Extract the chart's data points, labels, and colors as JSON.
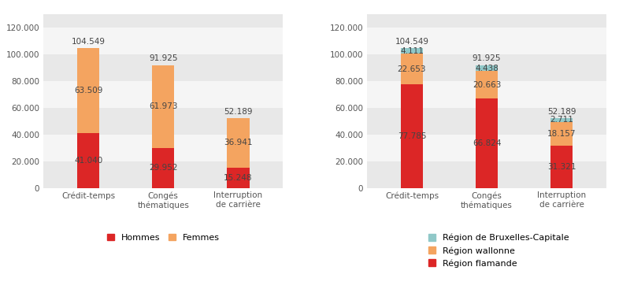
{
  "categories": [
    "Crédit-temps",
    "Congés\nthématiques",
    "Interruption\nde carrière"
  ],
  "chart1": {
    "hommes": [
      41040,
      29952,
      15248
    ],
    "femmes": [
      63509,
      61973,
      36941
    ],
    "totals": [
      104549,
      91925,
      52189
    ],
    "color_hommes": "#dc2626",
    "color_femmes": "#f4a460",
    "legend": [
      "Hommes",
      "Femmes"
    ]
  },
  "chart2": {
    "flamande": [
      77785,
      66824,
      31321
    ],
    "wallonne": [
      22653,
      20663,
      18157
    ],
    "bruxelles": [
      4111,
      4438,
      2711
    ],
    "totals": [
      104549,
      91925,
      52189
    ],
    "color_flamande": "#dc2626",
    "color_wallonne": "#f4a460",
    "color_bruxelles": "#90c8c8",
    "legend": [
      "Région de Bruxelles-Capitale",
      "Région wallonne",
      "Région flamande"
    ]
  },
  "ylim": [
    0,
    130000
  ],
  "yticks": [
    0,
    20000,
    40000,
    60000,
    80000,
    100000,
    120000
  ],
  "ytick_labels": [
    "0",
    "20.000",
    "40.000",
    "60.000",
    "80.000",
    "100.000",
    "120.000"
  ],
  "band_colors": [
    "#e8e8e8",
    "#f5f5f5"
  ],
  "bar_width": 0.3,
  "label_color": "#444444",
  "fontsize_labels": 7.5,
  "fontsize_ticks": 7.5,
  "fontsize_legend": 8
}
